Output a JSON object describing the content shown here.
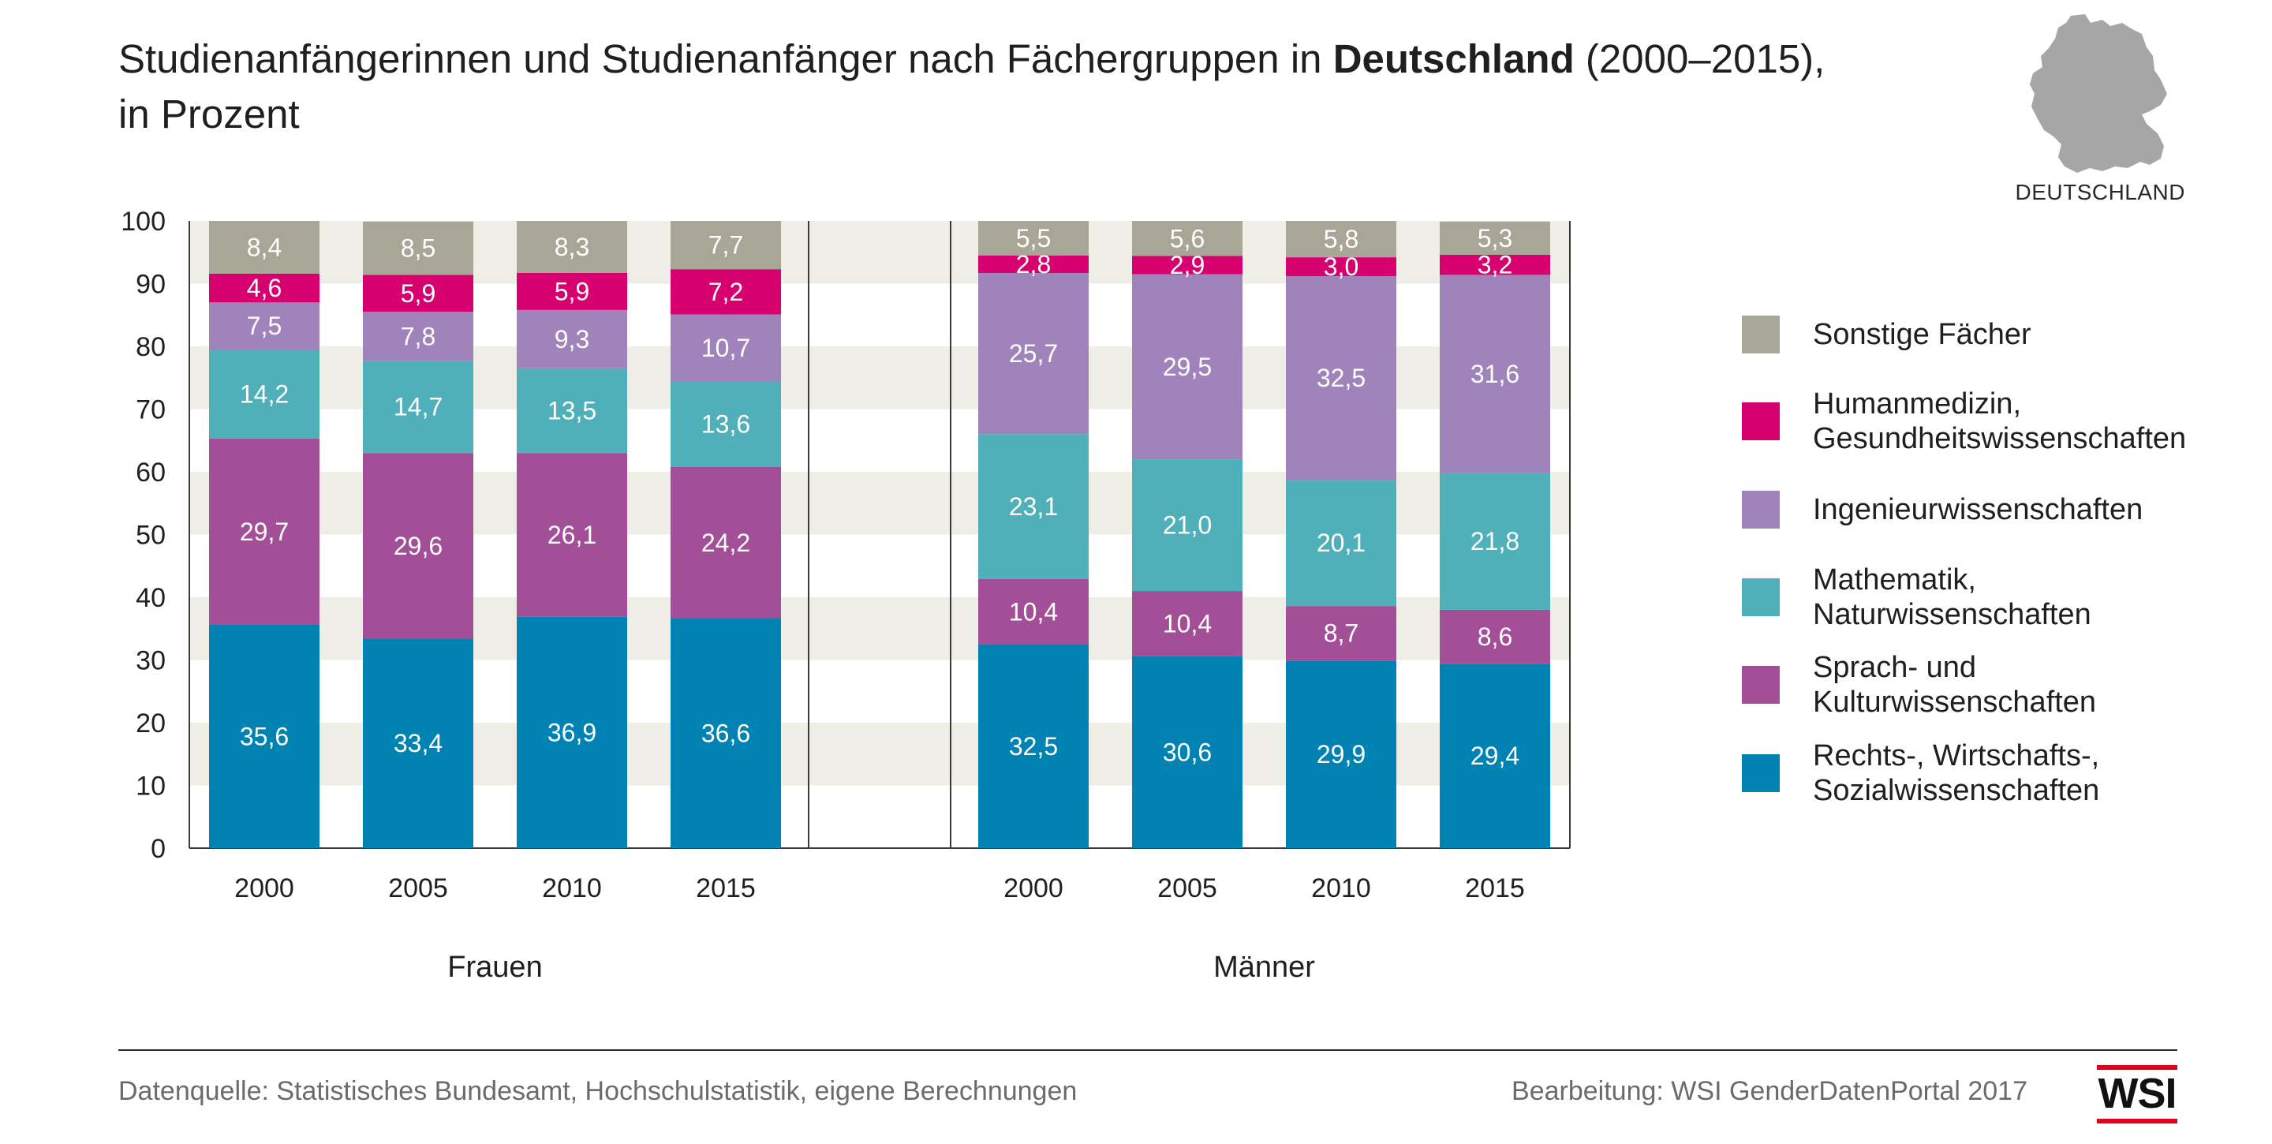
{
  "title": {
    "line1_before": "Studienanfängerinnen und Studienanfänger nach Fächergruppen in ",
    "line1_bold": "Deutschland",
    "line1_after": " (2000–2015),",
    "line2": "in Prozent"
  },
  "map_label": "DEUTSCHLAND",
  "footer": {
    "source": "Datenquelle:  Statistisches Bundesamt, Hochschulstatistik, eigene Berechnungen",
    "credit": "Bearbeitung: WSI GenderDatenPortal 2017",
    "logo": "WSI"
  },
  "colors": {
    "sonstige": "#a8a696",
    "humanmedizin": "#d6006e",
    "ingenieur": "#a183bc",
    "mathematik": "#4fb0ba",
    "sprach": "#a24f98",
    "rechts": "#0083b2"
  },
  "chart_data": {
    "type": "bar",
    "stacked": true,
    "groups": [
      {
        "name": "Frauen",
        "categories": [
          "2000",
          "2005",
          "2010",
          "2015"
        ]
      },
      {
        "name": "Männer",
        "categories": [
          "2000",
          "2005",
          "2010",
          "2015"
        ]
      }
    ],
    "ylim": [
      0,
      100
    ],
    "yticks": [
      0,
      10,
      20,
      30,
      40,
      50,
      60,
      70,
      80,
      90,
      100
    ],
    "legend_position": "right",
    "series": [
      {
        "key": "rechts",
        "name": "Rechts-, Wirtschafts-,\nSozialwissenschaften",
        "values": [
          35.6,
          33.4,
          36.9,
          36.6,
          32.5,
          30.6,
          29.9,
          29.4
        ],
        "labels": [
          "35,6",
          "33,4",
          "36,9",
          "36,6",
          "32,5",
          "30,6",
          "29,9",
          "29,4"
        ]
      },
      {
        "key": "sprach",
        "name": "Sprach- und\nKulturwissenschaften",
        "values": [
          29.7,
          29.6,
          26.1,
          24.2,
          10.4,
          10.4,
          8.7,
          8.6
        ],
        "labels": [
          "29,7",
          "29,6",
          "26,1",
          "24,2",
          "10,4",
          "10,4",
          "8,7",
          "8,6"
        ]
      },
      {
        "key": "mathematik",
        "name": "Mathematik,\nNaturwissenschaften",
        "values": [
          14.2,
          14.7,
          13.5,
          13.6,
          23.1,
          21.0,
          20.1,
          21.8
        ],
        "labels": [
          "14,2",
          "14,7",
          "13,5",
          "13,6",
          "23,1",
          "21,0",
          "20,1",
          "21,8"
        ]
      },
      {
        "key": "ingenieur",
        "name": "Ingenieurwissenschaften",
        "values": [
          7.5,
          7.8,
          9.3,
          10.7,
          25.7,
          29.5,
          32.5,
          31.6
        ],
        "labels": [
          "7,5",
          "7,8",
          "9,3",
          "10,7",
          "25,7",
          "29,5",
          "32,5",
          "31,6"
        ]
      },
      {
        "key": "humanmedizin",
        "name": "Humanmedizin,\nGesundheitswissenschaften",
        "values": [
          4.6,
          5.9,
          5.9,
          7.2,
          2.8,
          2.9,
          3.0,
          3.2
        ],
        "labels": [
          "4,6",
          "5,9",
          "5,9",
          "7,2",
          "2,8",
          "2,9",
          "3,0",
          "3,2"
        ]
      },
      {
        "key": "sonstige",
        "name": "Sonstige Fächer",
        "values": [
          8.4,
          8.5,
          8.3,
          7.7,
          5.5,
          5.6,
          5.8,
          5.3
        ],
        "labels": [
          "8,4",
          "8,5",
          "8,3",
          "7,7",
          "5,5",
          "5,6",
          "5,8",
          "5,3"
        ]
      }
    ],
    "legend_order": [
      "sonstige",
      "humanmedizin",
      "ingenieur",
      "mathematik",
      "sprach",
      "rechts"
    ]
  }
}
